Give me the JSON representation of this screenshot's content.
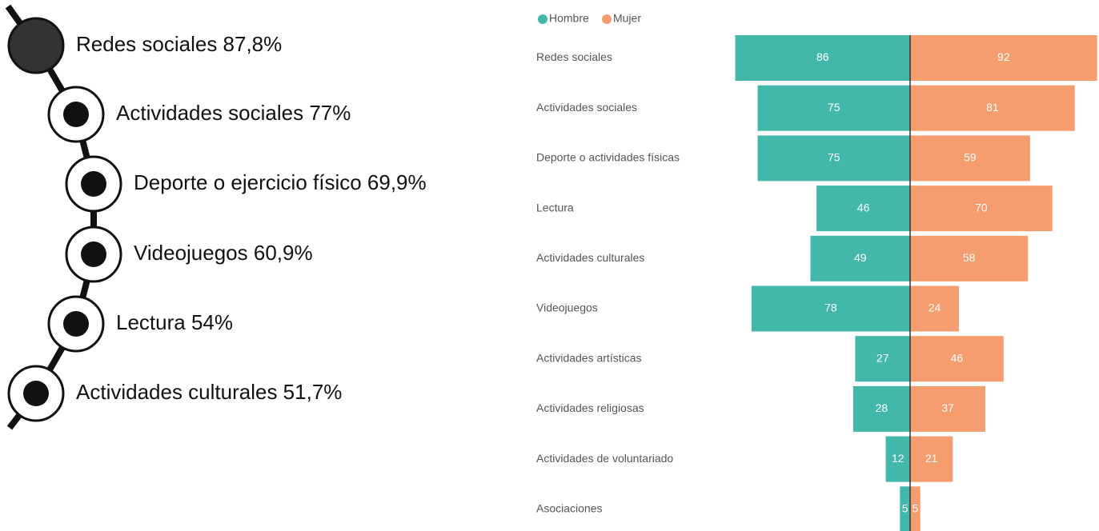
{
  "list": {
    "items": [
      "Redes sociales 87,8%",
      "Actividades sociales 77%",
      "Deporte o ejercicio físico 69,9%",
      "Videojuegos 60,9%",
      "Lectura 54%",
      "Actividades culturales 51,7%"
    ]
  },
  "chart_data": {
    "type": "butterfly",
    "categories": [
      "Redes sociales",
      "Actividades sociales",
      "Deporte o actividades físicas",
      "Lectura",
      "Actividades culturales",
      "Videojuegos",
      "Actividades artísticas",
      "Actividades religiosas",
      "Actividades de voluntariado",
      "Asociaciones"
    ],
    "series": [
      {
        "name": "Hombre",
        "color": "#41b8aa",
        "values": [
          86,
          75,
          75,
          46,
          49,
          78,
          27,
          28,
          12,
          5
        ]
      },
      {
        "name": "Mujer",
        "color": "#f59d6e",
        "values": [
          92,
          81,
          59,
          70,
          58,
          24,
          46,
          37,
          21,
          5
        ]
      }
    ],
    "legend": "top-left"
  }
}
